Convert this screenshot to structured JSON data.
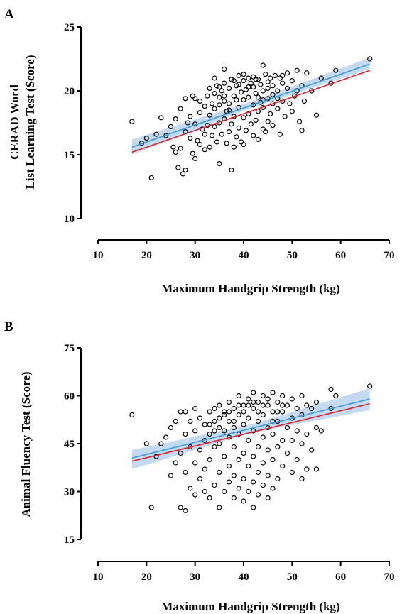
{
  "chart_data": [
    {
      "type": "scatter",
      "panel_label": "A",
      "title": "",
      "xlabel": "Maximum Handgrip Strength (kg)",
      "ylabel_lines": [
        "CERAD Word",
        "List Learning Test (Score)"
      ],
      "xlim": [
        10,
        70
      ],
      "ylim": [
        10,
        25
      ],
      "xticks": [
        10,
        20,
        30,
        40,
        50,
        60,
        70
      ],
      "yticks": [
        10,
        15,
        20,
        25
      ],
      "fit_lines": [
        {
          "color": "#3a9ad9",
          "x": [
            17,
            66
          ],
          "y": [
            15.6,
            22.1
          ]
        },
        {
          "color": "#e0202a",
          "x": [
            17,
            66
          ],
          "y": [
            15.2,
            21.6
          ]
        }
      ],
      "confidence_band": {
        "color": "#b8d4ee",
        "x": [
          17,
          41.5,
          66
        ],
        "lower": [
          15.0,
          18.65,
          21.7
        ],
        "upper": [
          16.2,
          19.15,
          22.6
        ]
      },
      "points": [
        [
          17,
          17.6
        ],
        [
          19,
          15.9
        ],
        [
          20,
          16.3
        ],
        [
          21,
          13.2
        ],
        [
          22,
          16.6
        ],
        [
          23,
          17.9
        ],
        [
          24,
          16.5
        ],
        [
          25,
          17.2
        ],
        [
          25.5,
          15.6
        ],
        [
          26,
          15.2
        ],
        [
          26,
          17.8
        ],
        [
          26.5,
          14.0
        ],
        [
          27,
          15.5
        ],
        [
          27,
          18.6
        ],
        [
          27.5,
          13.5
        ],
        [
          28,
          13.8
        ],
        [
          28,
          16.8
        ],
        [
          28,
          19.4
        ],
        [
          28.5,
          17.5
        ],
        [
          29,
          16.3
        ],
        [
          29,
          18.0
        ],
        [
          29.5,
          19.6
        ],
        [
          29.5,
          15.1
        ],
        [
          30,
          14.7
        ],
        [
          30,
          17.4
        ],
        [
          30,
          19.4
        ],
        [
          30.5,
          16.1
        ],
        [
          31,
          15.8
        ],
        [
          31,
          18.3
        ],
        [
          31,
          19.2
        ],
        [
          31.5,
          17.0
        ],
        [
          32,
          15.4
        ],
        [
          32,
          16.6
        ],
        [
          32,
          18.8
        ],
        [
          32.5,
          19.6
        ],
        [
          32.5,
          17.3
        ],
        [
          33,
          15.6
        ],
        [
          33,
          18.1
        ],
        [
          33,
          20.2
        ],
        [
          33.5,
          16.5
        ],
        [
          33.5,
          19.0
        ],
        [
          34,
          17.2
        ],
        [
          34,
          18.6
        ],
        [
          34,
          19.8
        ],
        [
          34.5,
          16.0
        ],
        [
          34.5,
          20.4
        ],
        [
          35,
          14.3
        ],
        [
          35,
          17.5
        ],
        [
          35,
          18.9
        ],
        [
          35,
          19.5
        ],
        [
          35.5,
          16.6
        ],
        [
          35.5,
          20.0
        ],
        [
          36,
          21.7
        ],
        [
          36,
          17.8
        ],
        [
          36,
          19.2
        ],
        [
          36,
          20.6
        ],
        [
          36.5,
          15.9
        ],
        [
          36.5,
          18.4
        ],
        [
          37,
          16.8
        ],
        [
          37,
          19.0
        ],
        [
          37,
          20.2
        ],
        [
          37.5,
          13.8
        ],
        [
          37.5,
          17.4
        ],
        [
          37.5,
          20.9
        ],
        [
          38,
          15.6
        ],
        [
          38,
          18.0
        ],
        [
          38,
          19.6
        ],
        [
          38.5,
          16.4
        ],
        [
          38.5,
          20.4
        ],
        [
          39,
          17.1
        ],
        [
          39,
          18.7
        ],
        [
          39,
          21.2
        ],
        [
          39.5,
          16.0
        ],
        [
          39.5,
          19.9
        ],
        [
          40,
          15.8
        ],
        [
          40,
          17.9
        ],
        [
          40,
          19.3
        ],
        [
          40,
          20.8
        ],
        [
          40.5,
          16.9
        ],
        [
          40.5,
          20.1
        ],
        [
          41,
          18.2
        ],
        [
          41,
          19.5
        ],
        [
          41,
          21.0
        ],
        [
          41.5,
          17.4
        ],
        [
          41.5,
          20.6
        ],
        [
          42,
          16.5
        ],
        [
          42,
          18.9
        ],
        [
          42,
          20.3
        ],
        [
          42,
          21.1
        ],
        [
          42.5,
          17.7
        ],
        [
          42.5,
          19.8
        ],
        [
          43,
          16.2
        ],
        [
          43,
          18.4
        ],
        [
          43,
          20.9
        ],
        [
          43.5,
          19.1
        ],
        [
          43.5,
          20.5
        ],
        [
          44,
          17.0
        ],
        [
          44,
          22.0
        ],
        [
          44,
          18.7
        ],
        [
          44,
          20.0
        ],
        [
          44.5,
          21.3
        ],
        [
          44.5,
          16.8
        ],
        [
          45,
          19.4
        ],
        [
          45,
          17.6
        ],
        [
          45,
          20.7
        ],
        [
          45.5,
          18.2
        ],
        [
          45.5,
          21.0
        ],
        [
          46,
          19.0
        ],
        [
          46,
          20.4
        ],
        [
          46,
          17.3
        ],
        [
          46.5,
          21.2
        ],
        [
          47,
          18.6
        ],
        [
          47,
          20.0
        ],
        [
          47.5,
          16.6
        ],
        [
          47.5,
          21.0
        ],
        [
          48,
          19.2
        ],
        [
          48,
          20.6
        ],
        [
          48.5,
          18.0
        ],
        [
          49,
          20.2
        ],
        [
          49,
          21.4
        ],
        [
          49.5,
          19.0
        ],
        [
          50,
          18.4
        ],
        [
          50,
          20.8
        ],
        [
          50.5,
          19.6
        ],
        [
          51,
          20.0
        ],
        [
          51,
          21.6
        ],
        [
          51.5,
          17.6
        ],
        [
          52,
          16.9
        ],
        [
          52,
          20.4
        ],
        [
          52.5,
          19.2
        ],
        [
          53,
          21.4
        ],
        [
          54,
          20.0
        ],
        [
          55,
          18.1
        ],
        [
          56,
          21.0
        ],
        [
          58,
          20.6
        ],
        [
          59,
          21.6
        ],
        [
          66,
          22.5
        ],
        [
          38.5,
          19.3
        ],
        [
          39,
          20.5
        ],
        [
          40,
          21.3
        ],
        [
          41,
          20.3
        ],
        [
          42.5,
          20.9
        ],
        [
          43,
          19.5
        ],
        [
          44,
          19.3
        ],
        [
          45,
          20.2
        ],
        [
          46,
          19.7
        ],
        [
          47,
          19.4
        ],
        [
          48,
          21.2
        ],
        [
          36,
          19.6
        ],
        [
          37,
          18.5
        ],
        [
          38,
          20.8
        ],
        [
          35,
          20.3
        ],
        [
          34,
          21.0
        ]
      ]
    },
    {
      "type": "scatter",
      "panel_label": "B",
      "title": "",
      "xlabel": "Maximum Handgrip Strength (kg)",
      "ylabel_lines": [
        "Animal  Fluency  Test (Score)"
      ],
      "xlim": [
        10,
        70
      ],
      "ylim": [
        15,
        75
      ],
      "xticks": [
        10,
        20,
        30,
        40,
        50,
        60,
        70
      ],
      "yticks": [
        15,
        30,
        45,
        60,
        75
      ],
      "fit_lines": [
        {
          "color": "#3a9ad9",
          "x": [
            17,
            66
          ],
          "y": [
            40.5,
            59.0
          ]
        },
        {
          "color": "#e0202a",
          "x": [
            17,
            66
          ],
          "y": [
            39.5,
            57.5
          ]
        }
      ],
      "confidence_band": {
        "color": "#b8d4ee",
        "x": [
          17,
          41.5,
          66
        ],
        "lower": [
          37.0,
          48.4,
          55.5
        ],
        "upper": [
          43.0,
          51.0,
          62.3
        ]
      },
      "points": [
        [
          17,
          54
        ],
        [
          20,
          45
        ],
        [
          21,
          25
        ],
        [
          22,
          41
        ],
        [
          23,
          45
        ],
        [
          24,
          47
        ],
        [
          25,
          35
        ],
        [
          25,
          50
        ],
        [
          26,
          39
        ],
        [
          26,
          52
        ],
        [
          27,
          25
        ],
        [
          27,
          42
        ],
        [
          27,
          55
        ],
        [
          28,
          24
        ],
        [
          28,
          36
        ],
        [
          28,
          48
        ],
        [
          28,
          55
        ],
        [
          29,
          31
        ],
        [
          29,
          44
        ],
        [
          29,
          52
        ],
        [
          30,
          29
        ],
        [
          30,
          39
        ],
        [
          30,
          49
        ],
        [
          30,
          56
        ],
        [
          31,
          34
        ],
        [
          31,
          43
        ],
        [
          31,
          53
        ],
        [
          32,
          30
        ],
        [
          32,
          37
        ],
        [
          32,
          46
        ],
        [
          32,
          51
        ],
        [
          33,
          28
        ],
        [
          33,
          40
        ],
        [
          33,
          48
        ],
        [
          33,
          55
        ],
        [
          34,
          32
        ],
        [
          34,
          44
        ],
        [
          34,
          52
        ],
        [
          34,
          56
        ],
        [
          35,
          25
        ],
        [
          35,
          36
        ],
        [
          35,
          45
        ],
        [
          35,
          50
        ],
        [
          35,
          57
        ],
        [
          36,
          30
        ],
        [
          36,
          41
        ],
        [
          36,
          49
        ],
        [
          36,
          54
        ],
        [
          37,
          33
        ],
        [
          37,
          38
        ],
        [
          37,
          47
        ],
        [
          37,
          52
        ],
        [
          37,
          58
        ],
        [
          38,
          28
        ],
        [
          38,
          35
        ],
        [
          38,
          44
        ],
        [
          38,
          50
        ],
        [
          38,
          56
        ],
        [
          39,
          31
        ],
        [
          39,
          40
        ],
        [
          39,
          48
        ],
        [
          39,
          54
        ],
        [
          39,
          60
        ],
        [
          40,
          27
        ],
        [
          40,
          34
        ],
        [
          40,
          42
        ],
        [
          40,
          51
        ],
        [
          40,
          57
        ],
        [
          41,
          30
        ],
        [
          41,
          38
        ],
        [
          41,
          46
        ],
        [
          41,
          53
        ],
        [
          41,
          59
        ],
        [
          42,
          25
        ],
        [
          42,
          33
        ],
        [
          42,
          41
        ],
        [
          42,
          49
        ],
        [
          42,
          56
        ],
        [
          42,
          61
        ],
        [
          43,
          29
        ],
        [
          43,
          36
        ],
        [
          43,
          44
        ],
        [
          43,
          52
        ],
        [
          43,
          58
        ],
        [
          44,
          32
        ],
        [
          44,
          39
        ],
        [
          44,
          47
        ],
        [
          44,
          54
        ],
        [
          44,
          60
        ],
        [
          45,
          28
        ],
        [
          45,
          35
        ],
        [
          45,
          43
        ],
        [
          45,
          50
        ],
        [
          45,
          57
        ],
        [
          46,
          31
        ],
        [
          46,
          40
        ],
        [
          46,
          48
        ],
        [
          46,
          55
        ],
        [
          46,
          61
        ],
        [
          47,
          34
        ],
        [
          47,
          44
        ],
        [
          47,
          52
        ],
        [
          47,
          58
        ],
        [
          48,
          38
        ],
        [
          48,
          46
        ],
        [
          48,
          55
        ],
        [
          48,
          60
        ],
        [
          49,
          42
        ],
        [
          49,
          50
        ],
        [
          49,
          57
        ],
        [
          50,
          36
        ],
        [
          50,
          46
        ],
        [
          50,
          53
        ],
        [
          50,
          59
        ],
        [
          51,
          40
        ],
        [
          51,
          49
        ],
        [
          51,
          56
        ],
        [
          52,
          34
        ],
        [
          52,
          45
        ],
        [
          52,
          54
        ],
        [
          52,
          60
        ],
        [
          53,
          37
        ],
        [
          53,
          48
        ],
        [
          53,
          57
        ],
        [
          54,
          43
        ],
        [
          54,
          56
        ],
        [
          55,
          37
        ],
        [
          55,
          50
        ],
        [
          55,
          58
        ],
        [
          56,
          49
        ],
        [
          58,
          56
        ],
        [
          58,
          62
        ],
        [
          59,
          60
        ],
        [
          66,
          63
        ],
        [
          36,
          55
        ],
        [
          38,
          52
        ],
        [
          40,
          55
        ],
        [
          41,
          57
        ],
        [
          42,
          58
        ],
        [
          43,
          55
        ],
        [
          44,
          57
        ],
        [
          45,
          59
        ],
        [
          46,
          52
        ],
        [
          47,
          55
        ],
        [
          48,
          57
        ],
        [
          39,
          57
        ],
        [
          37,
          55
        ],
        [
          35,
          53
        ],
        [
          34,
          49
        ],
        [
          33,
          51
        ]
      ]
    }
  ]
}
